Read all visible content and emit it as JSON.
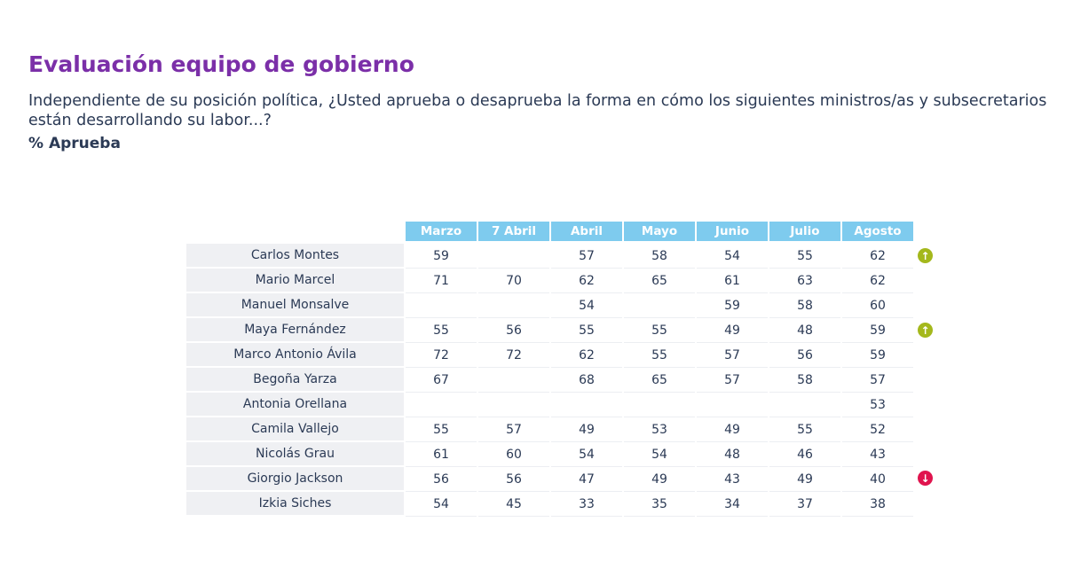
{
  "header": {
    "title": "Evaluación equipo de gobierno",
    "subtitle": "Independiente de su posición política, ¿Usted aprueba o desaprueba la forma en cómo los siguientes ministros/as y subsecretarios están desarrollando su labor...?",
    "measure": "% Aprueba"
  },
  "table": {
    "columns": [
      "Marzo",
      "7 Abril",
      "Abril",
      "Mayo",
      "Junio",
      "Julio",
      "Agosto"
    ],
    "rows": [
      {
        "name": "Carlos Montes",
        "values": [
          59,
          null,
          57,
          58,
          54,
          55,
          62
        ]
      },
      {
        "name": "Mario Marcel",
        "values": [
          71,
          70,
          62,
          65,
          61,
          63,
          62
        ]
      },
      {
        "name": "Manuel Monsalve",
        "values": [
          null,
          null,
          54,
          null,
          59,
          58,
          60
        ]
      },
      {
        "name": "Maya Fernández",
        "values": [
          55,
          56,
          55,
          55,
          49,
          48,
          59
        ]
      },
      {
        "name": "Marco Antonio Ávila",
        "values": [
          72,
          72,
          62,
          55,
          57,
          56,
          59
        ]
      },
      {
        "name": "Begoña Yarza",
        "values": [
          67,
          null,
          68,
          65,
          57,
          58,
          57
        ]
      },
      {
        "name": "Antonia Orellana",
        "values": [
          null,
          null,
          null,
          null,
          null,
          null,
          53
        ]
      },
      {
        "name": "Camila Vallejo",
        "values": [
          55,
          57,
          49,
          53,
          49,
          55,
          52
        ]
      },
      {
        "name": "Nicolás Grau",
        "values": [
          61,
          60,
          54,
          54,
          48,
          46,
          43
        ]
      },
      {
        "name": "Giorgio Jackson",
        "values": [
          56,
          56,
          47,
          49,
          43,
          49,
          40
        ]
      },
      {
        "name": "Izkia Siches",
        "values": [
          54,
          45,
          33,
          35,
          34,
          37,
          38
        ]
      }
    ]
  }
}
